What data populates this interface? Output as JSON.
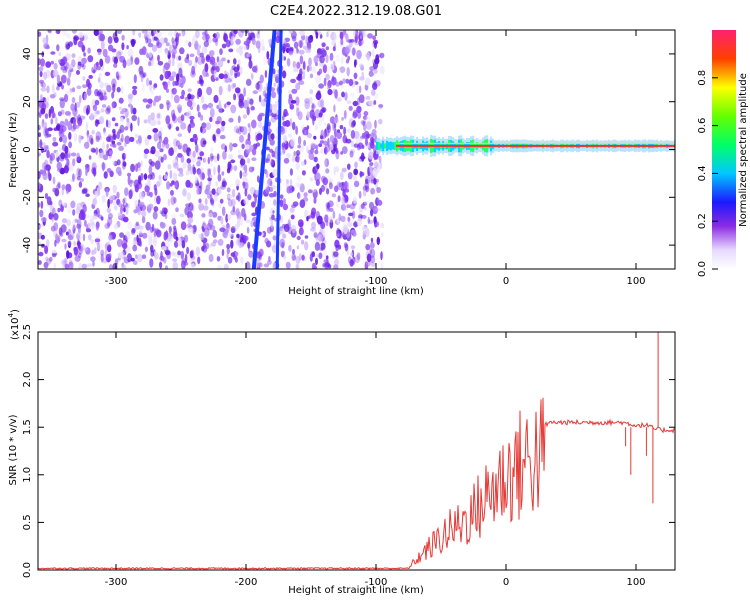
{
  "figure_title": "C2E4.2022.312.19.08.G01",
  "chart_data": [
    {
      "type": "heatmap",
      "xlabel": "Height of straight line (km)",
      "ylabel": "Frequency (Hz)",
      "xlim": [
        -360,
        130
      ],
      "ylim": [
        -50,
        50
      ],
      "xticks": [
        -300,
        -200,
        -100,
        0,
        100
      ],
      "yticks": [
        -40,
        -20,
        0,
        20,
        40
      ],
      "noise_region_x": [
        -360,
        -95
      ],
      "signal_region_x": [
        -100,
        130
      ],
      "signal_center_freq": 1.5,
      "streaks": [
        {
          "x_at_ymin": -194,
          "x_at_ymax": -178
        },
        {
          "x_at_ymin": -176,
          "x_at_ymax": -173
        }
      ],
      "colorbar": {
        "label": "Normalized spectral amplitude",
        "range": [
          0.0,
          1.0
        ],
        "ticks": [
          0.0,
          0.2,
          0.4,
          0.6,
          0.8
        ],
        "tick_labels": [
          "0.0",
          "0.2",
          "0.4",
          "0.6",
          "0.8"
        ]
      }
    },
    {
      "type": "line",
      "xlabel": "Height of straight line (km)",
      "ylabel": "SNR (10 * v/v)",
      "yscale_label": "(x10",
      "yscale_exp": "4",
      "xlim": [
        -360,
        130
      ],
      "ylim": [
        0,
        2.5
      ],
      "xticks": [
        -300,
        -200,
        -100,
        0,
        100
      ],
      "yticks": [
        0.0,
        0.5,
        1.0,
        1.5,
        2.0,
        2.5
      ],
      "ytick_labels": [
        "0.0",
        "0.5",
        "1.0",
        "1.5",
        "2.0",
        "2.5"
      ],
      "color": "#e53935",
      "series": [
        {
          "x": [
            -360,
            -300,
            -200,
            -100,
            -75,
            -65,
            -55,
            -45,
            -35,
            -25,
            -15,
            -5,
            5,
            15,
            25,
            35,
            50,
            70,
            90,
            100,
            108,
            115,
            120,
            130
          ],
          "y": [
            0.0,
            0.0,
            0.0,
            0.0,
            0.03,
            0.2,
            0.35,
            0.5,
            0.6,
            0.75,
            0.95,
            1.15,
            1.3,
            1.42,
            1.5,
            1.55,
            1.55,
            1.55,
            1.55,
            1.52,
            1.52,
            1.48,
            1.47,
            1.47
          ]
        }
      ]
    }
  ]
}
